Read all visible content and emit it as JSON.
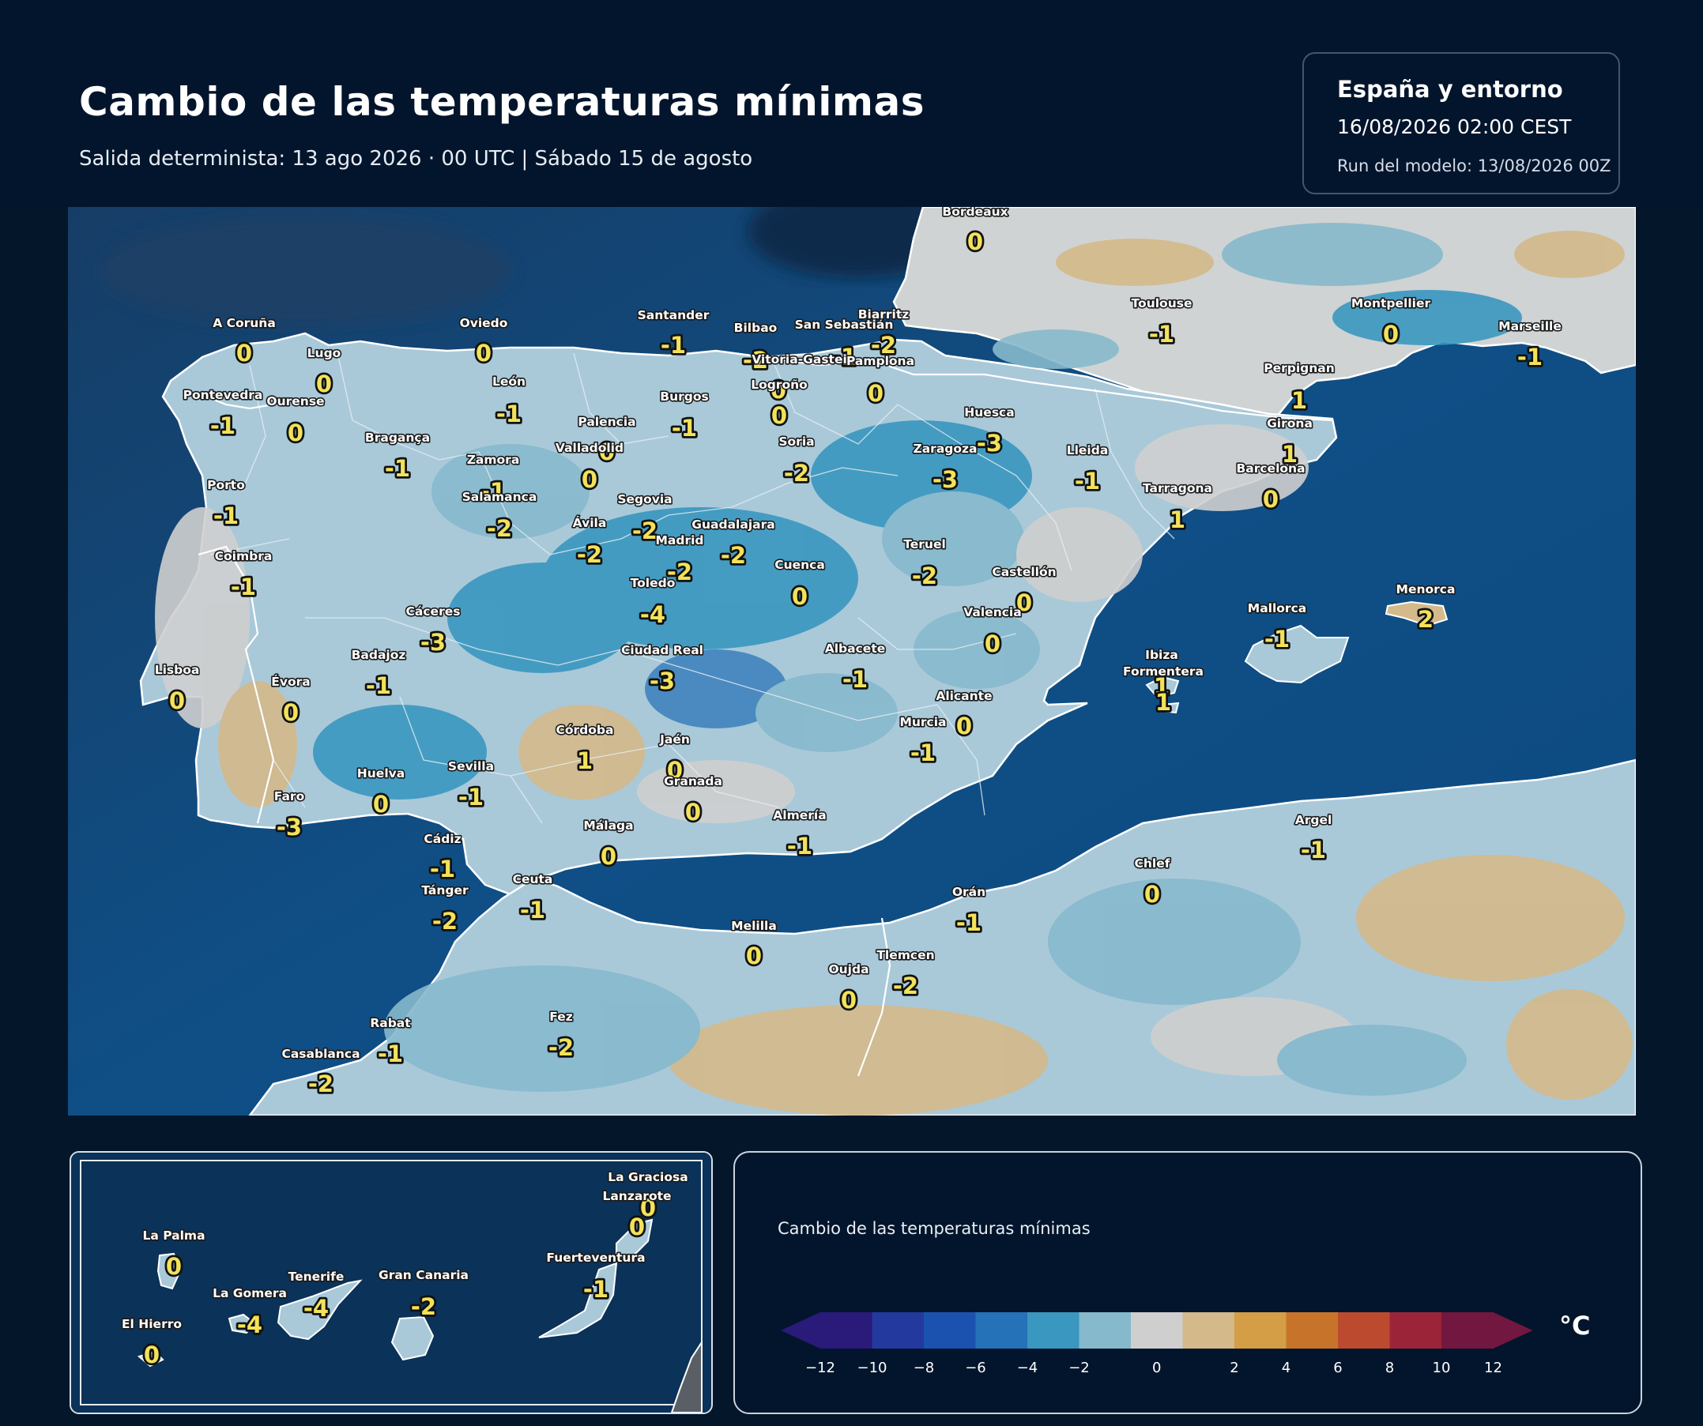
{
  "header": {
    "title": "Cambio de las temperaturas mínimas",
    "subtitle": "Salida determinista: 13 ago 2026 · 00 UTC  |  Sábado 15 de agosto"
  },
  "info": {
    "region": "España y entorno",
    "valid": "16/08/2026  02:00 CEST",
    "run": "Run del modelo: 13/08/2026 00Z"
  },
  "map": {
    "variable": "Cambio de las temperaturas mínimas",
    "unit": "°C",
    "cities": [
      {
        "name": "Bordeaux",
        "value": "0"
      },
      {
        "name": "A Coruña",
        "value": "0"
      },
      {
        "name": "Lugo",
        "value": "0"
      },
      {
        "name": "Oviedo",
        "value": "0"
      },
      {
        "name": "Santander",
        "value": "-1"
      },
      {
        "name": "Bilbao",
        "value": "-2"
      },
      {
        "name": "San Sebastián",
        "value": "-1"
      },
      {
        "name": "Biarritz",
        "value": "-2"
      },
      {
        "name": "Vitoria-Gasteiz",
        "value": "0"
      },
      {
        "name": "Pamplona",
        "value": "0"
      },
      {
        "name": "Logroño",
        "value": "0"
      },
      {
        "name": "Toulouse",
        "value": "-1"
      },
      {
        "name": "Montpellier",
        "value": "0"
      },
      {
        "name": "Marseille",
        "value": "-1"
      },
      {
        "name": "Pontevedra",
        "value": "-1"
      },
      {
        "name": "Ourense",
        "value": "0"
      },
      {
        "name": "León",
        "value": "-1"
      },
      {
        "name": "Burgos",
        "value": "-1"
      },
      {
        "name": "Palencia",
        "value": "0"
      },
      {
        "name": "Perpignan",
        "value": "1"
      },
      {
        "name": "Huesca",
        "value": "-3"
      },
      {
        "name": "Girona",
        "value": "1"
      },
      {
        "name": "Bragança",
        "value": "-1"
      },
      {
        "name": "Soria",
        "value": "-2"
      },
      {
        "name": "Valladolid",
        "value": "0"
      },
      {
        "name": "Zaragoza",
        "value": "-3"
      },
      {
        "name": "Lleida",
        "value": "-1"
      },
      {
        "name": "Zamora",
        "value": "-1"
      },
      {
        "name": "Barcelona",
        "value": "0"
      },
      {
        "name": "Porto",
        "value": "-1"
      },
      {
        "name": "Tarragona",
        "value": "1"
      },
      {
        "name": "Salamanca",
        "value": "-2"
      },
      {
        "name": "Segovia",
        "value": "-2"
      },
      {
        "name": "Ávila",
        "value": "-2"
      },
      {
        "name": "Guadalajara",
        "value": "-2"
      },
      {
        "name": "Madrid",
        "value": "-2"
      },
      {
        "name": "Teruel",
        "value": "-2"
      },
      {
        "name": "Coimbra",
        "value": "-1"
      },
      {
        "name": "Cuenca",
        "value": "0"
      },
      {
        "name": "Toledo",
        "value": "-4"
      },
      {
        "name": "Castellón",
        "value": "0"
      },
      {
        "name": "Menorca",
        "value": "2"
      },
      {
        "name": "Mallorca",
        "value": "-1"
      },
      {
        "name": "Cáceres",
        "value": "-3"
      },
      {
        "name": "Valencia",
        "value": "0"
      },
      {
        "name": "Ciudad Real",
        "value": "-3"
      },
      {
        "name": "Albacete",
        "value": "-1"
      },
      {
        "name": "Badajoz",
        "value": "-1"
      },
      {
        "name": "Ibiza",
        "value": "1"
      },
      {
        "name": "Formentera",
        "value": "1"
      },
      {
        "name": "Lisboa",
        "value": "0"
      },
      {
        "name": "Évora",
        "value": "0"
      },
      {
        "name": "Alicante",
        "value": "0"
      },
      {
        "name": "Murcia",
        "value": "-1"
      },
      {
        "name": "Córdoba",
        "value": "1"
      },
      {
        "name": "Jaén",
        "value": "0"
      },
      {
        "name": "Huelva",
        "value": "0"
      },
      {
        "name": "Sevilla",
        "value": "-1"
      },
      {
        "name": "Granada",
        "value": "0"
      },
      {
        "name": "Faro",
        "value": "-3"
      },
      {
        "name": "Almería",
        "value": "-1"
      },
      {
        "name": "Málaga",
        "value": "0"
      },
      {
        "name": "Cádiz",
        "value": "-1"
      },
      {
        "name": "Argel",
        "value": "-1"
      },
      {
        "name": "Chlef",
        "value": "0"
      },
      {
        "name": "Ceuta",
        "value": "-1"
      },
      {
        "name": "Tánger",
        "value": "-2"
      },
      {
        "name": "Orán",
        "value": "-1"
      },
      {
        "name": "Melilla",
        "value": "0"
      },
      {
        "name": "Tlemcen",
        "value": "-2"
      },
      {
        "name": "Oujda",
        "value": "0"
      },
      {
        "name": "Rabat",
        "value": "-1"
      },
      {
        "name": "Fez",
        "value": "-2"
      },
      {
        "name": "Casablanca",
        "value": "-2"
      }
    ],
    "canarias": [
      {
        "name": "La Graciosa",
        "value": "0"
      },
      {
        "name": "Lanzarote",
        "value": "0"
      },
      {
        "name": "La Palma",
        "value": "0"
      },
      {
        "name": "Fuerteventura",
        "value": "-1"
      },
      {
        "name": "Tenerife",
        "value": "-4"
      },
      {
        "name": "Gran Canaria",
        "value": "-2"
      },
      {
        "name": "La Gomera",
        "value": "-4"
      },
      {
        "name": "El Hierro",
        "value": "0"
      }
    ]
  },
  "legend": {
    "title": "Cambio de las temperaturas mínimas",
    "unit": "°C",
    "ticks": [
      "−12",
      "−10",
      "−8",
      "−6",
      "−4",
      "−2",
      "0",
      "2",
      "4",
      "6",
      "8",
      "10",
      "12"
    ],
    "colors": [
      "#2a1a7a",
      "#24399e",
      "#1b52b0",
      "#2572b8",
      "#3a97bf",
      "#86b9cc",
      "#cfcfcf",
      "#d4b98a",
      "#d39e45",
      "#c7742a",
      "#bb4a2f",
      "#9c2438",
      "#72173f"
    ]
  }
}
